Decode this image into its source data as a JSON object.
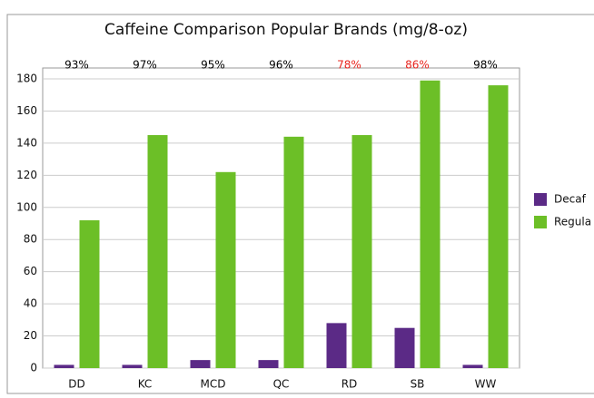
{
  "chart_data": {
    "type": "bar",
    "title": "Caffeine Comparison Popular Brands (mg/8-oz)",
    "categories": [
      "DD",
      "KC",
      "MCD",
      "QC",
      "RD",
      "SB",
      "WW"
    ],
    "series": [
      {
        "name": "Decaf",
        "color": "#5b2a86",
        "values": [
          2,
          2,
          5,
          5,
          28,
          25,
          2
        ]
      },
      {
        "name": "Regula",
        "color": "#6cbf27",
        "values": [
          92,
          145,
          122,
          144,
          145,
          179,
          176
        ]
      }
    ],
    "annotations": [
      {
        "text": "93%",
        "color": "#000000"
      },
      {
        "text": "97%",
        "color": "#000000"
      },
      {
        "text": "95%",
        "color": "#000000"
      },
      {
        "text": "96%",
        "color": "#000000"
      },
      {
        "text": "78%",
        "color": "#e8261f"
      },
      {
        "text": "86%",
        "color": "#e8261f"
      },
      {
        "text": "98%",
        "color": "#000000"
      }
    ],
    "ylim": [
      0,
      180
    ],
    "yticks": [
      0,
      20,
      40,
      60,
      80,
      100,
      120,
      140,
      160,
      180
    ],
    "grid": true
  }
}
